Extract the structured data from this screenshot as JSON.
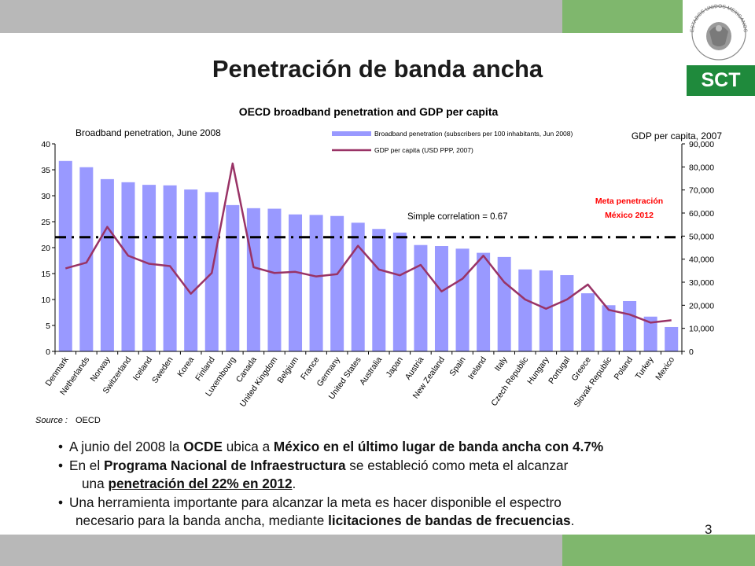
{
  "slide": {
    "title": "Penetración de banda ancha",
    "logo_text": "SCT",
    "seal_text": "ESTADOS UNIDOS MEXICANOS",
    "page_number": "3"
  },
  "chart_data": {
    "type": "bar",
    "title": "OECD broadband penetration and GDP per capita",
    "left_axis_title": "Broadband penetration, June 2008",
    "right_axis_title": "GDP per capita, 2007",
    "legend": {
      "bar": "Broadband penetration (subscribers per 100 inhabitants, Jun 2008)",
      "line": "GDP per capita (USD PPP, 2007)"
    },
    "correlation_text": "Simple correlation = 0.67",
    "target_label": [
      "Meta penetración",
      "México 2012"
    ],
    "target_value": 22,
    "source_label": "Source :",
    "source_value": "OECD",
    "colors": {
      "bar": "#9999ff",
      "line": "#993366",
      "target_line": "#000000",
      "target_text": "#ff0000"
    },
    "y_left": {
      "min": 0,
      "max": 40,
      "ticks": [
        "0",
        "5",
        "10",
        "15",
        "20",
        "25",
        "30",
        "35",
        "40"
      ]
    },
    "y_right": {
      "min": 0,
      "max": 90000,
      "ticks": [
        "0",
        "10,000",
        "20,000",
        "30,000",
        "40,000",
        "50,000",
        "60,000",
        "70,000",
        "80,000",
        "90,000"
      ]
    },
    "categories": [
      "Denmark",
      "Netherlands",
      "Norway",
      "Switzerland",
      "Iceland",
      "Sweden",
      "Korea",
      "Finland",
      "Luxembourg",
      "Canada",
      "United Kingdom",
      "Belgium",
      "France",
      "Germany",
      "United States",
      "Australia",
      "Japan",
      "Austria",
      "New Zealand",
      "Spain",
      "Ireland",
      "Italy",
      "Czech Republic",
      "Hungary",
      "Portugal",
      "Greece",
      "Slovak Republic",
      "Poland",
      "Turkey",
      "Mexico"
    ],
    "series": [
      {
        "name": "Broadband penetration (subscribers per 100 inhabitants, Jun 2008)",
        "type": "bar",
        "axis": "left",
        "values": [
          36.7,
          35.5,
          33.2,
          32.6,
          32.1,
          32.0,
          31.2,
          30.7,
          28.2,
          27.6,
          27.5,
          26.4,
          26.3,
          26.1,
          24.8,
          23.6,
          22.9,
          20.5,
          20.3,
          19.8,
          19.0,
          18.2,
          15.8,
          15.6,
          14.7,
          11.2,
          8.9,
          9.7,
          6.7,
          4.7
        ]
      },
      {
        "name": "GDP per capita (USD PPP, 2007)",
        "type": "line",
        "axis": "right",
        "values": [
          36000,
          38500,
          54000,
          41500,
          38000,
          37000,
          25000,
          34000,
          81500,
          36500,
          34000,
          34500,
          32500,
          33500,
          45800,
          35500,
          33000,
          37500,
          26000,
          31500,
          41500,
          30000,
          22500,
          18500,
          22500,
          29000,
          18000,
          16000,
          12500,
          13500
        ]
      }
    ]
  },
  "bullets": [
    {
      "parts": [
        [
          "A junio del 2008 la ",
          ""
        ],
        [
          "OCDE",
          "b"
        ],
        [
          " ubica a ",
          ""
        ],
        [
          "México en el último lugar de banda ancha con 4.7%",
          "b"
        ]
      ]
    },
    {
      "parts": [
        [
          "En el ",
          ""
        ],
        [
          "Programa Nacional de Infraestructura",
          "b"
        ],
        [
          " se estableció como meta el alcanzar",
          ""
        ]
      ]
    },
    {
      "indent": "ind",
      "parts": [
        [
          "una ",
          ""
        ],
        [
          "penetración del 22% en 2012",
          "u"
        ],
        [
          ".",
          ""
        ]
      ]
    },
    {
      "parts": [
        [
          "Una herramienta importante para alcanzar la meta es hacer disponible el espectro",
          ""
        ]
      ]
    },
    {
      "indent": "ind2",
      "parts": [
        [
          "necesario para la banda ancha, mediante ",
          ""
        ],
        [
          "licitaciones de bandas de frecuencias",
          "b"
        ],
        [
          ".",
          ""
        ]
      ]
    }
  ]
}
